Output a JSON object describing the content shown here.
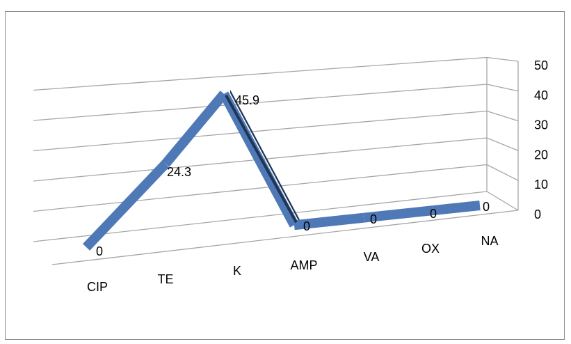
{
  "chart_data": {
    "type": "line",
    "style": "3d-ribbon",
    "categories": [
      "CIP",
      "TE",
      "K",
      "AMP",
      "VA",
      "OX",
      "NA"
    ],
    "values": [
      0,
      24.3,
      45.9,
      0,
      0,
      0,
      0
    ],
    "data_labels": [
      "0",
      "24.3",
      "45.9",
      "0",
      "0",
      "0",
      "0"
    ],
    "ylim": [
      0,
      50
    ],
    "yticks": [
      "0",
      "10",
      "20",
      "30",
      "40",
      "50"
    ],
    "grid": true,
    "legend": "none",
    "colors": {
      "ribbon_top": "#4f79b6",
      "ribbon_side": "#1f3556",
      "gridline": "#a6a6a6",
      "frame": "#8c8c8c"
    }
  }
}
